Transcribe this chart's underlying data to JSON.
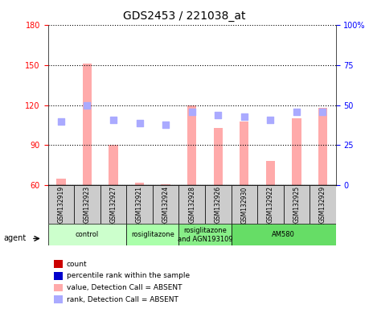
{
  "title": "GDS2453 / 221038_at",
  "samples": [
    "GSM132919",
    "GSM132923",
    "GSM132927",
    "GSM132921",
    "GSM132924",
    "GSM132928",
    "GSM132926",
    "GSM132930",
    "GSM132922",
    "GSM132925",
    "GSM132929"
  ],
  "bar_values": [
    65,
    151,
    90,
    62,
    61,
    120,
    103,
    108,
    78,
    110,
    118
  ],
  "rank_values": [
    40,
    50,
    41,
    39,
    38,
    46,
    44,
    43,
    41,
    46,
    46
  ],
  "ylim_left": [
    60,
    180
  ],
  "ylim_right": [
    0,
    100
  ],
  "yticks_left": [
    60,
    90,
    120,
    150,
    180
  ],
  "yticks_right": [
    0,
    25,
    50,
    75,
    100
  ],
  "ytick_labels_left": [
    "60",
    "90",
    "120",
    "150",
    "180"
  ],
  "ytick_labels_right": [
    "0",
    "25",
    "50",
    "75",
    "100%"
  ],
  "bar_color": "#ffaaaa",
  "rank_color": "#aaaaff",
  "groups": [
    {
      "label": "control",
      "start": 0,
      "end": 3,
      "color": "#ccffcc"
    },
    {
      "label": "rosiglitazone",
      "start": 3,
      "end": 5,
      "color": "#aaffaa"
    },
    {
      "label": "rosiglitazone\nand AGN193109",
      "start": 5,
      "end": 7,
      "color": "#88ee88"
    },
    {
      "label": "AM580",
      "start": 7,
      "end": 11,
      "color": "#66dd66"
    }
  ],
  "legend_items": [
    {
      "color": "#cc0000",
      "style": "square",
      "label": "count"
    },
    {
      "color": "#0000cc",
      "style": "square",
      "label": "percentile rank within the sample"
    },
    {
      "color": "#ffaaaa",
      "style": "square",
      "label": "value, Detection Call = ABSENT"
    },
    {
      "color": "#aaaaff",
      "style": "square",
      "label": "rank, Detection Call = ABSENT"
    }
  ],
  "agent_label": "agent",
  "background_color": "#ffffff",
  "grid_color": "#000000"
}
